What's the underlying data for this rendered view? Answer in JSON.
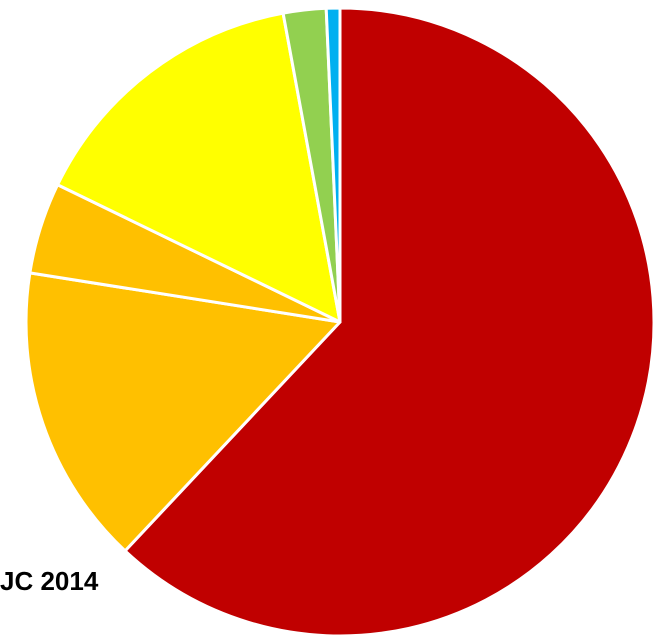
{
  "chart_data": {
    "type": "pie",
    "label_text": "JC 2014",
    "start_angle_deg": 0,
    "direction": "clockwise",
    "slices": [
      {
        "value": 62.0,
        "color": "#C00000"
      },
      {
        "value": 15.5,
        "color": "#FFC000"
      },
      {
        "value": 4.7,
        "color": "#FFC000"
      },
      {
        "value": 14.9,
        "color": "#FFFF00"
      },
      {
        "value": 2.2,
        "color": "#92D050"
      },
      {
        "value": 0.7,
        "color": "#00B0F0"
      }
    ]
  }
}
